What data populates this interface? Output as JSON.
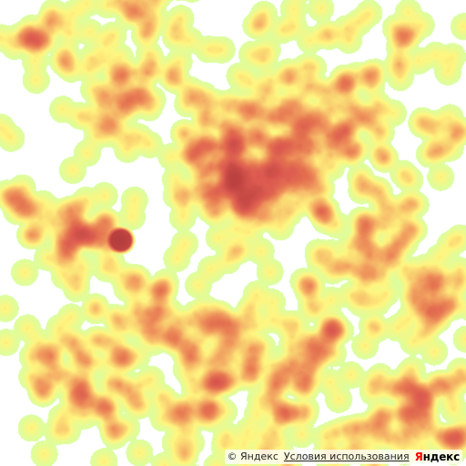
{
  "map": {
    "type": "heatmap",
    "palette": [
      "#b4ff5a",
      "#fff150",
      "#f09650",
      "#dc5a50",
      "#b43c3c"
    ],
    "background": "#ffffff"
  },
  "attribution": {
    "copyright": "© Яндекс",
    "terms": "Условия использования",
    "logo_first_letter": "Я",
    "logo_rest": "ндекс"
  }
}
